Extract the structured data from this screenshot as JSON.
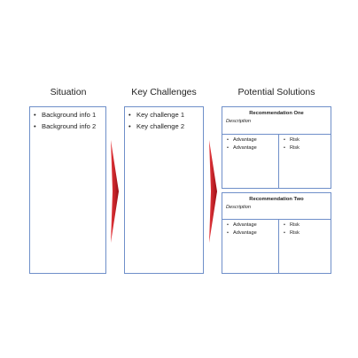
{
  "columns": {
    "situation": {
      "heading": "Situation",
      "items": [
        "Background info 1",
        "Background info 2"
      ]
    },
    "challenges": {
      "heading": "Key Challenges",
      "items": [
        "Key challenge 1",
        "Key challenge 2"
      ]
    },
    "solutions": {
      "heading": "Potential Solutions",
      "recommendations": [
        {
          "title": "Recommendation One",
          "description": "Description",
          "advantages": [
            "Advantage",
            "Advantage"
          ],
          "risks": [
            "Risk",
            "Risk"
          ]
        },
        {
          "title": "Recommendation Two",
          "description": "Description",
          "advantages": [
            "Advantage",
            "Advantage"
          ],
          "risks": [
            "Risk",
            "Risk"
          ]
        }
      ]
    }
  },
  "colors": {
    "box_border": "#6f8fc9",
    "arrow_light": "#e8383d",
    "arrow_dark": "#9b0d14"
  }
}
